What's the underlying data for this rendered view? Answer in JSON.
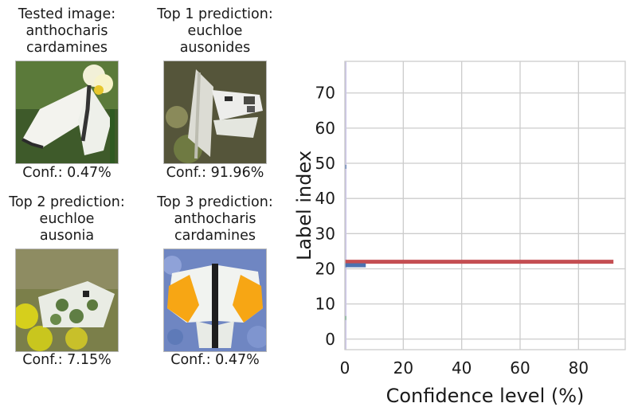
{
  "panels": [
    {
      "title": "Tested image:\nanthocharis\ncardamines",
      "confidence": "Conf.: 0.47%",
      "image": "white-orange-tip-butterfly-on-flower-icon"
    },
    {
      "title": "Top 1 prediction:\neuchloe\nausonides",
      "confidence": "Conf.: 91.96%",
      "image": "white-marbled-butterfly-on-stem-icon"
    },
    {
      "title": "Top 2 prediction:\neuchloe\nausonia",
      "confidence": "Conf.: 7.15%",
      "image": "green-marbled-butterfly-on-yellow-flower-icon"
    },
    {
      "title": "Top 3 prediction:\nanthocharis\ncardamines",
      "confidence": "Conf.: 0.47%",
      "image": "orange-tip-butterfly-open-wings-icon"
    }
  ],
  "chart_data": {
    "type": "bar",
    "orientation": "horizontal",
    "xlabel": "Confidence level (%)",
    "ylabel": "Label index",
    "xlim": [
      0,
      96
    ],
    "ylim": [
      -3,
      79
    ],
    "xticks": [
      0,
      20,
      40,
      60,
      80
    ],
    "yticks": [
      0,
      10,
      20,
      30,
      40,
      50,
      60,
      70
    ],
    "grid": true,
    "bars": [
      {
        "label_index": 22,
        "value": 91.96,
        "color": "#c44e52"
      },
      {
        "label_index": 21,
        "value": 7.15,
        "color": "#4c72b0"
      },
      {
        "label_index": 49,
        "value": 0.47,
        "color": "#4c72b0"
      },
      {
        "label_index": 6,
        "value": 0.3,
        "color": "#55a868"
      }
    ],
    "baseline_color": "#c9c4e8"
  }
}
